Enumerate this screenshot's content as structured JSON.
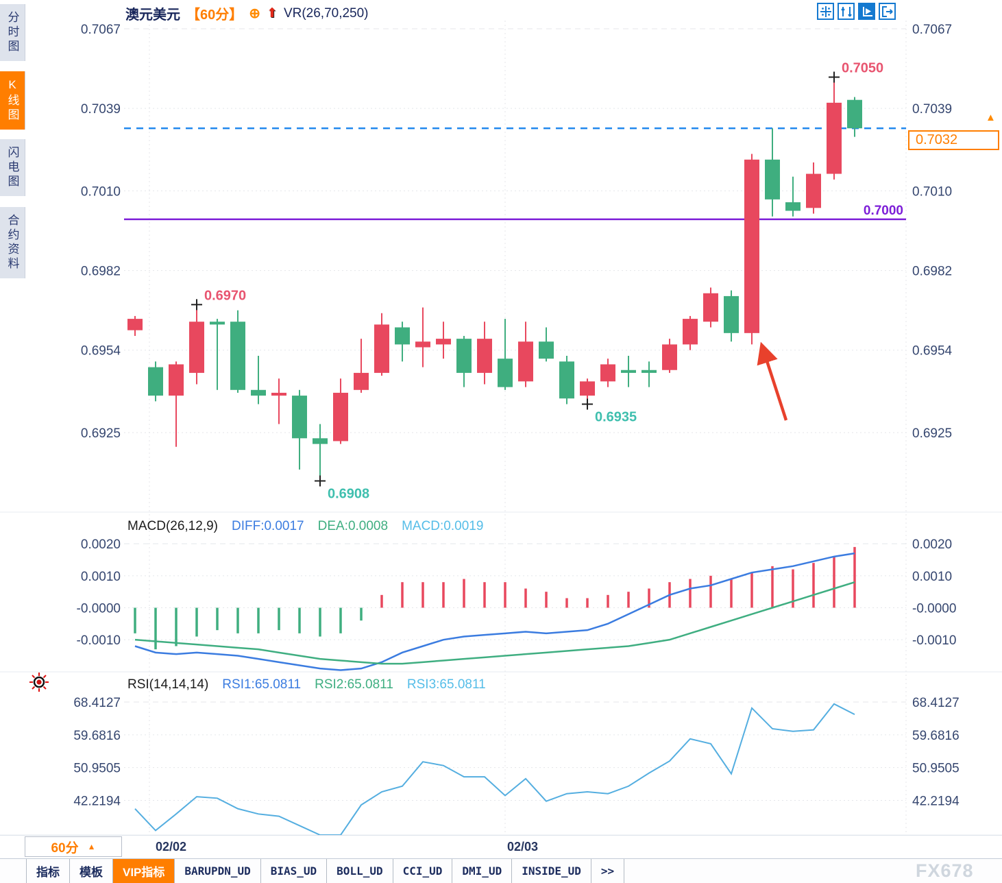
{
  "header": {
    "symbol": "澳元美元",
    "timeframe": "【60分】",
    "overlay_indicator": "VR(26,70,250)"
  },
  "icons": {
    "plus_target": "⊕",
    "signal_arrow": "⬆",
    "caret_up": "▲",
    "price_marker": "▲"
  },
  "sidebar": {
    "items": [
      {
        "label": "分时图",
        "active": false
      },
      {
        "label": "K线图",
        "active": true
      },
      {
        "label": "闪电图",
        "active": false
      },
      {
        "label": "合约资料",
        "active": false
      }
    ]
  },
  "toolbar": {
    "icons": [
      "crosshair",
      "axis-range",
      "auto-scale",
      "pan-right"
    ]
  },
  "timeframe_selector": {
    "label": "60分"
  },
  "bottom_tabs": [
    {
      "label": "指标",
      "active": false,
      "mono": false
    },
    {
      "label": "模板",
      "active": false,
      "mono": false
    },
    {
      "label": "VIP指标",
      "active": true,
      "mono": false
    },
    {
      "label": "BARUPDN_UD",
      "active": false,
      "mono": true
    },
    {
      "label": "BIAS_UD",
      "active": false,
      "mono": true
    },
    {
      "label": "BOLL_UD",
      "active": false,
      "mono": true
    },
    {
      "label": "CCI_UD",
      "active": false,
      "mono": true
    },
    {
      "label": "DMI_UD",
      "active": false,
      "mono": true
    },
    {
      "label": "INSIDE_UD",
      "active": false,
      "mono": true
    },
    {
      "label": ">>",
      "active": false,
      "mono": true
    }
  ],
  "watermark": "FX678",
  "colors": {
    "up": "#e8485e",
    "down": "#3fae7f",
    "orange": "#ff7e00",
    "axis_text": "#35466f",
    "title_text": "#17255a",
    "diff_blue": "#3b7ce0",
    "dea_green": "#3fae81",
    "macd_cyan": "#55bde8",
    "rsi_blue": "#54aee0",
    "purple": "#7d1ed8",
    "current_dash_blue": "#2288ee",
    "marker_high": "#e85570",
    "marker_low": "#3fbfae",
    "arrow_red": "#e8412c",
    "grid": "#e4e6ea",
    "cross": "#202020"
  },
  "chart_data": {
    "type": "candlestick",
    "symbol": "澳元美元",
    "timeframe": "60分",
    "price_pane": {
      "ylim": [
        0.6908,
        0.7067
      ],
      "ticks": [
        {
          "value": 0.7067,
          "label": "0.7067"
        },
        {
          "value": 0.7039,
          "label": "0.7039"
        },
        {
          "value": 0.701,
          "label": "0.7010"
        },
        {
          "value": 0.6982,
          "label": "0.6982"
        },
        {
          "value": 0.6954,
          "label": "0.6954"
        },
        {
          "value": 0.6925,
          "label": "0.6925"
        }
      ],
      "candles_ohlc": [
        [
          0.6961,
          0.6966,
          0.6959,
          0.6965
        ],
        [
          0.6948,
          0.695,
          0.6936,
          0.6938
        ],
        [
          0.6938,
          0.695,
          0.692,
          0.6949
        ],
        [
          0.6946,
          0.697,
          0.6942,
          0.6964
        ],
        [
          0.6964,
          0.6965,
          0.694,
          0.6963
        ],
        [
          0.6964,
          0.6968,
          0.6939,
          0.694
        ],
        [
          0.694,
          0.6952,
          0.6935,
          0.6938
        ],
        [
          0.6938,
          0.6944,
          0.6928,
          0.6939
        ],
        [
          0.6938,
          0.694,
          0.6912,
          0.6923
        ],
        [
          0.6923,
          0.6928,
          0.6908,
          0.6921
        ],
        [
          0.6922,
          0.6944,
          0.6921,
          0.6939
        ],
        [
          0.694,
          0.6958,
          0.6939,
          0.6946
        ],
        [
          0.6946,
          0.6967,
          0.6945,
          0.6963
        ],
        [
          0.6962,
          0.6964,
          0.695,
          0.6956
        ],
        [
          0.6955,
          0.6969,
          0.6948,
          0.6957
        ],
        [
          0.6956,
          0.6964,
          0.6951,
          0.6958
        ],
        [
          0.6958,
          0.6959,
          0.6941,
          0.6946
        ],
        [
          0.6946,
          0.6964,
          0.6942,
          0.6958
        ],
        [
          0.6951,
          0.6965,
          0.694,
          0.6941
        ],
        [
          0.6943,
          0.6964,
          0.6941,
          0.6957
        ],
        [
          0.6957,
          0.6962,
          0.695,
          0.6951
        ],
        [
          0.695,
          0.6952,
          0.6935,
          0.6937
        ],
        [
          0.6938,
          0.6944,
          0.6935,
          0.6943
        ],
        [
          0.6943,
          0.6951,
          0.6941,
          0.6949
        ],
        [
          0.6947,
          0.6952,
          0.6941,
          0.6946
        ],
        [
          0.6947,
          0.695,
          0.6941,
          0.6946
        ],
        [
          0.6947,
          0.6958,
          0.6946,
          0.6956
        ],
        [
          0.6956,
          0.6966,
          0.6954,
          0.6965
        ],
        [
          0.6964,
          0.6976,
          0.6962,
          0.6974
        ],
        [
          0.6973,
          0.6975,
          0.6957,
          0.696
        ],
        [
          0.696,
          0.7023,
          0.6956,
          0.7021
        ],
        [
          0.7021,
          0.7032,
          0.7001,
          0.7007
        ],
        [
          0.7006,
          0.7015,
          0.7001,
          0.7003
        ],
        [
          0.7004,
          0.702,
          0.7002,
          0.7016
        ],
        [
          0.7016,
          0.705,
          0.7014,
          0.7041
        ],
        [
          0.7042,
          0.7043,
          0.7029,
          0.7032
        ]
      ],
      "color_convention": "red=up green=down",
      "markers": [
        {
          "index": 3,
          "type": "high",
          "price": 0.697,
          "label": "0.6970"
        },
        {
          "index": 9,
          "type": "low",
          "price": 0.6908,
          "label": "0.6908"
        },
        {
          "index": 22,
          "type": "low",
          "price": 0.6935,
          "label": "0.6935"
        },
        {
          "index": 34,
          "type": "high",
          "price": 0.705,
          "label": "0.7050"
        }
      ],
      "current_price": {
        "value": 0.7032,
        "label": "0.7032"
      },
      "level_line": {
        "value": 0.7,
        "label": "0.7000"
      }
    },
    "macd_pane": {
      "title": "MACD(26,12,9)",
      "readout": {
        "diff": "DIFF:0.0017",
        "dea": "DEA:0.0008",
        "macd": "MACD:0.0019"
      },
      "ticks": [
        {
          "value": 0.002,
          "label": "0.0020"
        },
        {
          "value": 0.001,
          "label": "0.0010"
        },
        {
          "value": 0.0,
          "label": "-0.0000"
        },
        {
          "value": -0.001,
          "label": "-0.0010"
        }
      ],
      "histogram": [
        -0.0008,
        -0.0013,
        -0.0012,
        -0.0009,
        -0.0007,
        -0.0008,
        -0.0008,
        -0.0007,
        -0.0008,
        -0.0009,
        -0.0008,
        -0.0004,
        0.0004,
        0.0008,
        0.0008,
        0.0008,
        0.0009,
        0.0008,
        0.0008,
        0.0006,
        0.0005,
        0.0003,
        0.0003,
        0.0004,
        0.0005,
        0.0006,
        0.0008,
        0.0009,
        0.001,
        0.0009,
        0.0011,
        0.0013,
        0.0012,
        0.0014,
        0.0016,
        0.0019
      ],
      "diff_line": [
        -0.0012,
        -0.0014,
        -0.00145,
        -0.0014,
        -0.00145,
        -0.0015,
        -0.0016,
        -0.0017,
        -0.0018,
        -0.0019,
        -0.00195,
        -0.0019,
        -0.0017,
        -0.0014,
        -0.0012,
        -0.001,
        -0.0009,
        -0.00085,
        -0.0008,
        -0.00075,
        -0.0008,
        -0.00075,
        -0.0007,
        -0.0005,
        -0.0002,
        0.0001,
        0.0004,
        0.0006,
        0.0007,
        0.0009,
        0.0011,
        0.0012,
        0.0013,
        0.00145,
        0.0016,
        0.0017
      ],
      "dea_line": [
        -0.001,
        -0.00105,
        -0.0011,
        -0.00115,
        -0.0012,
        -0.00125,
        -0.0013,
        -0.0014,
        -0.0015,
        -0.0016,
        -0.00165,
        -0.0017,
        -0.00175,
        -0.00175,
        -0.0017,
        -0.00165,
        -0.0016,
        -0.00155,
        -0.0015,
        -0.00145,
        -0.0014,
        -0.00135,
        -0.0013,
        -0.00125,
        -0.0012,
        -0.0011,
        -0.001,
        -0.0008,
        -0.0006,
        -0.0004,
        -0.0002,
        0.0,
        0.0002,
        0.0004,
        0.0006,
        0.0008
      ]
    },
    "rsi_pane": {
      "title": "RSI(14,14,14)",
      "readout": {
        "rsi1": "RSI1:65.0811",
        "rsi2": "RSI2:65.0811",
        "rsi3": "RSI3:65.0811"
      },
      "ticks": [
        {
          "value": 68.4127,
          "label": "68.4127"
        },
        {
          "value": 59.6816,
          "label": "59.6816"
        },
        {
          "value": 50.9505,
          "label": "50.9505"
        },
        {
          "value": 42.2194,
          "label": "42.2194"
        }
      ],
      "values": [
        40.0,
        34.2,
        38.6,
        43.2,
        42.8,
        40.0,
        38.6,
        38.0,
        35.5,
        33.0,
        33.0,
        41.0,
        44.5,
        46.0,
        52.5,
        51.5,
        48.5,
        48.5,
        43.5,
        48.0,
        42.0,
        44.0,
        44.5,
        44.0,
        46.0,
        49.5,
        52.7,
        58.6,
        57.3,
        49.3,
        66.8,
        61.3,
        60.6,
        61.0,
        67.9,
        65.1
      ]
    },
    "time_axis": {
      "labels": [
        "02/02",
        "02/03"
      ]
    }
  }
}
